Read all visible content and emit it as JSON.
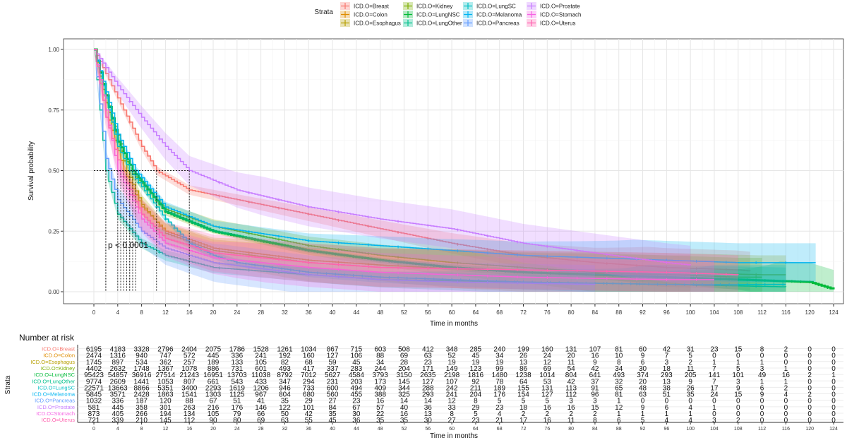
{
  "chart_data": [
    {
      "type": "line",
      "subtype": "kaplan-meier",
      "xlabel": "Time in months",
      "ylabel": "Survival probability",
      "xlim": [
        0,
        124
      ],
      "ylim": [
        0,
        1
      ],
      "xticks": [
        0,
        4,
        8,
        12,
        16,
        20,
        24,
        28,
        32,
        36,
        40,
        44,
        48,
        52,
        56,
        60,
        64,
        68,
        72,
        76,
        80,
        84,
        88,
        92,
        96,
        100,
        104,
        108,
        112,
        116,
        120,
        124
      ],
      "yticks": [
        "0.00",
        "0.25",
        "0.50",
        "0.75",
        "1.00"
      ],
      "grid": true,
      "annotation": "p < 0.0001",
      "legend": {
        "title": "Strata",
        "position": "top"
      },
      "series": [
        {
          "name": "ICD.O=Breast",
          "color": "#F8766D",
          "median": 10.5,
          "x": [
            0,
            4,
            8,
            10.5,
            16,
            24,
            36,
            48,
            60,
            72,
            84,
            96,
            108,
            110
          ],
          "y": [
            1,
            0.8,
            0.6,
            0.5,
            0.42,
            0.38,
            0.32,
            0.26,
            0.2,
            0.15,
            0.12,
            0.1,
            0.09,
            0.085
          ]
        },
        {
          "name": "ICD.O=Colon",
          "color": "#DE8C00",
          "median": 5,
          "x": [
            0,
            2,
            5,
            8,
            12,
            20,
            36,
            48,
            72,
            96,
            100
          ],
          "y": [
            1,
            0.75,
            0.5,
            0.35,
            0.25,
            0.18,
            0.13,
            0.11,
            0.08,
            0.07,
            0.07
          ]
        },
        {
          "name": "ICD.O=Esophagus",
          "color": "#B79F00",
          "median": 5.5,
          "x": [
            0,
            2,
            5.5,
            8,
            12,
            20,
            36,
            48,
            72,
            96,
            112,
            116
          ],
          "y": [
            1,
            0.78,
            0.5,
            0.36,
            0.24,
            0.17,
            0.12,
            0.1,
            0.09,
            0.08,
            0.07,
            0.07
          ]
        },
        {
          "name": "ICD.O=Kidney",
          "color": "#7CAE00",
          "median": 6,
          "x": [
            0,
            3,
            6,
            12,
            20,
            36,
            48,
            60,
            72,
            84,
            96,
            108,
            112
          ],
          "y": [
            1,
            0.72,
            0.5,
            0.34,
            0.27,
            0.19,
            0.15,
            0.12,
            0.1,
            0.08,
            0.07,
            0.06,
            0.06
          ]
        },
        {
          "name": "ICD.O=LungNSC",
          "color": "#00BA38",
          "median": 6.5,
          "x": [
            0,
            4,
            6.5,
            12,
            20,
            36,
            48,
            60,
            72,
            84,
            96,
            108,
            120,
            124
          ],
          "y": [
            1,
            0.62,
            0.5,
            0.33,
            0.25,
            0.17,
            0.13,
            0.1,
            0.08,
            0.07,
            0.06,
            0.05,
            0.04,
            0.01
          ]
        },
        {
          "name": "ICD.O=LungOther",
          "color": "#00C08B",
          "median": 2,
          "x": [
            0,
            2,
            4,
            8,
            12,
            20,
            36,
            48,
            72,
            96,
            116
          ],
          "y": [
            1,
            0.5,
            0.32,
            0.2,
            0.15,
            0.1,
            0.07,
            0.05,
            0.04,
            0.03,
            0.02
          ]
        },
        {
          "name": "ICD.O=LungSC",
          "color": "#00BFC4",
          "median": 6,
          "x": [
            0,
            4,
            6,
            12,
            16,
            20,
            24,
            36,
            48,
            60,
            72,
            96,
            116
          ],
          "y": [
            1,
            0.6,
            0.5,
            0.3,
            0.2,
            0.15,
            0.12,
            0.08,
            0.06,
            0.05,
            0.04,
            0.03,
            0.03
          ]
        },
        {
          "name": "ICD.O=Melanoma",
          "color": "#00B4F0",
          "median": 7,
          "x": [
            0,
            4,
            7,
            12,
            20,
            36,
            48,
            60,
            72,
            84,
            96,
            108,
            121
          ],
          "y": [
            1,
            0.65,
            0.5,
            0.35,
            0.27,
            0.21,
            0.19,
            0.17,
            0.15,
            0.14,
            0.13,
            0.12,
            0.12
          ]
        },
        {
          "name": "ICD.O=Pancreas",
          "color": "#619CFF",
          "median": 2,
          "x": [
            0,
            2,
            4,
            8,
            12,
            20,
            36,
            48,
            60,
            84
          ],
          "y": [
            1,
            0.55,
            0.38,
            0.25,
            0.18,
            0.12,
            0.07,
            0.05,
            0.04,
            0.03
          ]
        },
        {
          "name": "ICD.O=Prostate",
          "color": "#C77CFF",
          "median": 16,
          "x": [
            0,
            4,
            8,
            12,
            16,
            24,
            36,
            48,
            60,
            72,
            84,
            96,
            100
          ],
          "y": [
            1,
            0.85,
            0.72,
            0.6,
            0.5,
            0.42,
            0.35,
            0.3,
            0.26,
            0.2,
            0.16,
            0.12,
            0.11
          ]
        },
        {
          "name": "ICD.O=Stomach",
          "color": "#F564E3",
          "median": 4,
          "x": [
            0,
            4,
            8,
            12,
            20,
            36,
            48,
            60,
            72,
            96,
            104
          ],
          "y": [
            1,
            0.5,
            0.3,
            0.2,
            0.14,
            0.1,
            0.08,
            0.07,
            0.06,
            0.05,
            0.05
          ]
        },
        {
          "name": "ICD.O=Uterus",
          "color": "#FF64B0",
          "median": 4.5,
          "x": [
            0,
            2,
            4.5,
            8,
            12,
            20,
            36,
            48,
            72,
            96,
            108
          ],
          "y": [
            1,
            0.72,
            0.5,
            0.32,
            0.22,
            0.16,
            0.12,
            0.1,
            0.09,
            0.08,
            0.07
          ]
        }
      ]
    },
    {
      "type": "table",
      "title": "Number at risk",
      "ylabel": "Strata",
      "xlabel": "Time in months",
      "columns": [
        0,
        4,
        8,
        12,
        16,
        20,
        24,
        28,
        32,
        36,
        40,
        44,
        48,
        52,
        56,
        60,
        64,
        68,
        72,
        76,
        80,
        84,
        88,
        92,
        96,
        100,
        104,
        108,
        112,
        116,
        120,
        124
      ],
      "rows": [
        {
          "name": "ICD.O=Breast",
          "values": [
            6195,
            4183,
            3328,
            2796,
            2404,
            2075,
            1786,
            1528,
            1261,
            1034,
            867,
            715,
            603,
            508,
            412,
            348,
            285,
            240,
            199,
            160,
            131,
            107,
            81,
            60,
            42,
            31,
            23,
            15,
            8,
            2,
            0,
            0
          ]
        },
        {
          "name": "ICD.O=Colon",
          "values": [
            2474,
            1316,
            940,
            747,
            572,
            445,
            336,
            241,
            192,
            160,
            127,
            106,
            88,
            69,
            63,
            52,
            45,
            34,
            26,
            24,
            20,
            16,
            10,
            9,
            7,
            5,
            0,
            0,
            0,
            0,
            0,
            0
          ]
        },
        {
          "name": "ICD.O=Esophagus",
          "values": [
            1745,
            897,
            534,
            362,
            257,
            189,
            133,
            105,
            82,
            68,
            59,
            45,
            34,
            28,
            23,
            19,
            19,
            19,
            13,
            12,
            11,
            9,
            8,
            6,
            3,
            2,
            1,
            1,
            1,
            0,
            0,
            0
          ]
        },
        {
          "name": "ICD.O=Kidney",
          "values": [
            4402,
            2632,
            1748,
            1367,
            1078,
            886,
            731,
            601,
            493,
            417,
            337,
            283,
            244,
            204,
            171,
            149,
            123,
            99,
            86,
            69,
            54,
            42,
            34,
            30,
            18,
            11,
            7,
            5,
            3,
            1,
            0,
            0
          ]
        },
        {
          "name": "ICD.O=LungNSC",
          "values": [
            95423,
            54857,
            36916,
            27514,
            21243,
            16951,
            13703,
            11038,
            8792,
            7012,
            5627,
            4584,
            3793,
            3150,
            2635,
            2198,
            1816,
            1480,
            1238,
            1014,
            804,
            641,
            493,
            374,
            293,
            205,
            141,
            101,
            49,
            16,
            2,
            1
          ]
        },
        {
          "name": "ICD.O=LungOther",
          "values": [
            9774,
            2609,
            1441,
            1053,
            807,
            661,
            543,
            433,
            347,
            294,
            231,
            203,
            173,
            145,
            127,
            107,
            92,
            78,
            64,
            53,
            42,
            37,
            32,
            20,
            13,
            9,
            7,
            3,
            1,
            1,
            0,
            0
          ]
        },
        {
          "name": "ICD.O=LungSC",
          "values": [
            22571,
            13663,
            8866,
            5351,
            3400,
            2293,
            1619,
            1206,
            946,
            733,
            600,
            494,
            409,
            344,
            288,
            242,
            211,
            189,
            155,
            131,
            113,
            91,
            65,
            48,
            38,
            26,
            17,
            9,
            6,
            2,
            0,
            0
          ]
        },
        {
          "name": "ICD.O=Melanoma",
          "values": [
            5845,
            3571,
            2428,
            1863,
            1541,
            1303,
            1125,
            967,
            804,
            680,
            560,
            455,
            388,
            325,
            293,
            241,
            204,
            176,
            154,
            127,
            112,
            96,
            81,
            63,
            51,
            35,
            24,
            15,
            9,
            4,
            2,
            0
          ]
        },
        {
          "name": "ICD.O=Pancreas",
          "values": [
            1032,
            336,
            187,
            120,
            88,
            67,
            51,
            41,
            35,
            29,
            27,
            23,
            16,
            14,
            14,
            12,
            8,
            5,
            5,
            5,
            3,
            3,
            1,
            0,
            0,
            0,
            0,
            0,
            0,
            0,
            0,
            0
          ]
        },
        {
          "name": "ICD.O=Prostate",
          "values": [
            581,
            445,
            358,
            301,
            263,
            216,
            176,
            146,
            122,
            101,
            84,
            67,
            57,
            40,
            36,
            33,
            29,
            23,
            18,
            16,
            16,
            15,
            12,
            9,
            6,
            4,
            1,
            0,
            0,
            0,
            0,
            0
          ]
        },
        {
          "name": "ICD.O=Stomach",
          "values": [
            873,
            405,
            266,
            194,
            134,
            105,
            79,
            66,
            50,
            42,
            35,
            30,
            22,
            16,
            13,
            8,
            5,
            4,
            2,
            2,
            2,
            2,
            1,
            1,
            1,
            1,
            0,
            0,
            0,
            0,
            0,
            0
          ]
        },
        {
          "name": "ICD.O=Uterus",
          "values": [
            721,
            339,
            210,
            145,
            112,
            90,
            80,
            69,
            63,
            55,
            45,
            36,
            35,
            35,
            30,
            27,
            23,
            21,
            17,
            16,
            11,
            8,
            6,
            5,
            4,
            4,
            3,
            2,
            0,
            0,
            0,
            0
          ]
        }
      ]
    }
  ]
}
